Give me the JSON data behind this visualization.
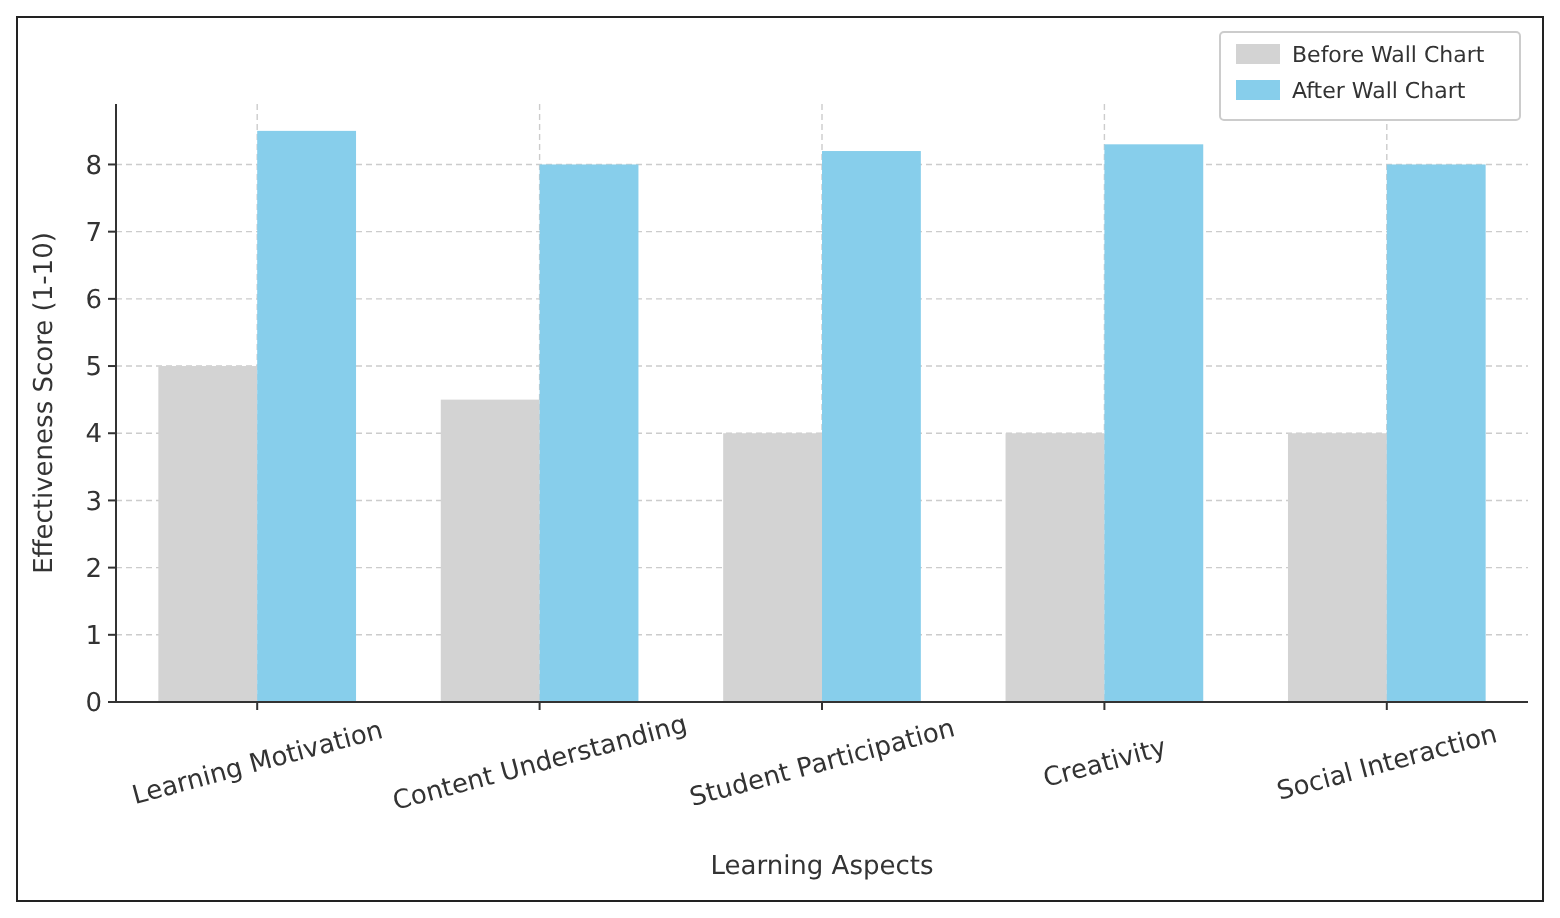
{
  "chart_data": {
    "type": "bar",
    "xlabel": "Learning Aspects",
    "ylabel": "Effectiveness Score (1-10)",
    "categories": [
      "Learning Motivation",
      "Content Understanding",
      "Student Participation",
      "Creativity",
      "Social Interaction"
    ],
    "series": [
      {
        "name": "Before Wall Chart",
        "color": "#d3d3d3",
        "values": [
          5,
          4.5,
          4,
          4,
          4
        ]
      },
      {
        "name": "After Wall Chart",
        "color": "#87ceeb",
        "values": [
          8.5,
          8,
          8.2,
          8.3,
          8
        ]
      }
    ],
    "ylim": [
      0,
      8.9
    ],
    "yticks": [
      0,
      1,
      2,
      3,
      4,
      5,
      6,
      7,
      8
    ],
    "grid": true,
    "legend": "top right"
  }
}
